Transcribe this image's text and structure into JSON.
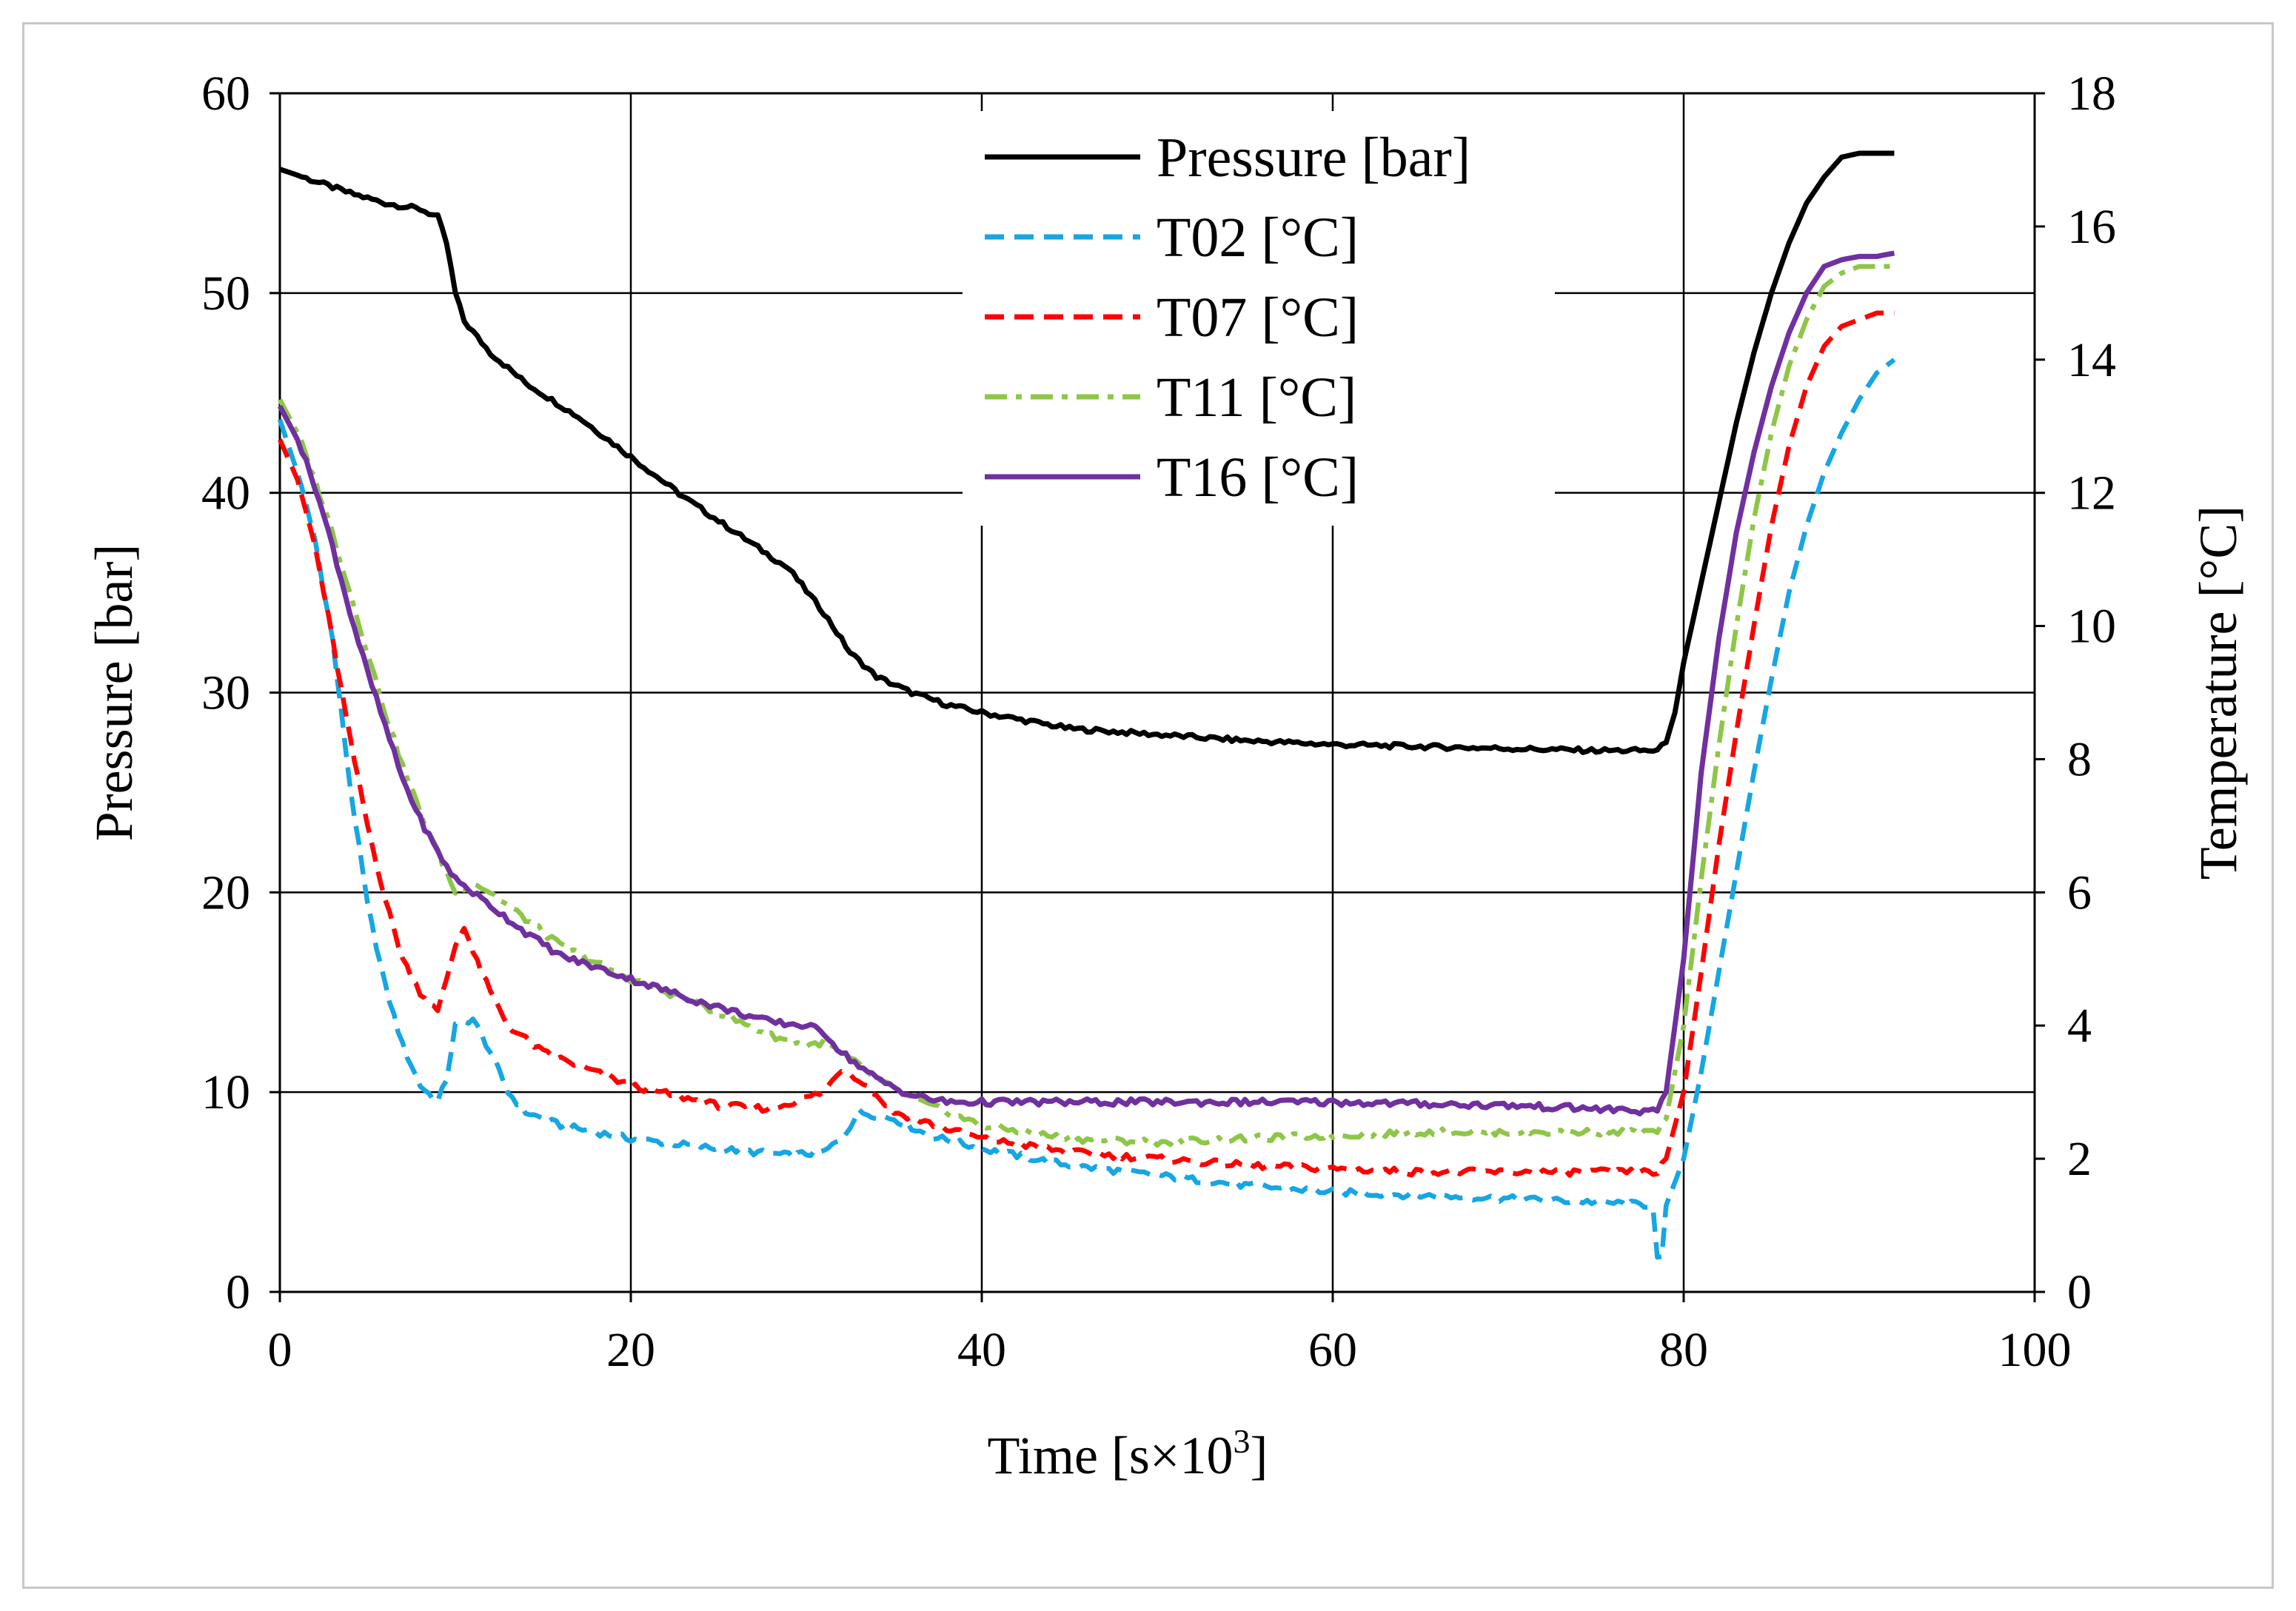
{
  "chart_data": {
    "type": "line",
    "title": "",
    "xlabel": "Time [s×10",
    "xlabel_sup": "3",
    "xlabel_end": "]",
    "ylabel": "Pressure [bar]",
    "y2label": "Temperature [°C]",
    "xlim": [
      0,
      100
    ],
    "ylim": [
      0,
      60
    ],
    "y2lim": [
      0,
      18
    ],
    "xticks": [
      "0",
      "20",
      "40",
      "60",
      "80",
      "100"
    ],
    "yticks": [
      "0",
      "10",
      "20",
      "30",
      "40",
      "50",
      "60"
    ],
    "y2ticks": [
      "0",
      "2",
      "4",
      "6",
      "8",
      "10",
      "12",
      "14",
      "16",
      "18"
    ],
    "grid": true,
    "legend_position": "top-center",
    "series": [
      {
        "name": "Pressure [bar]",
        "axis": "left",
        "color": "#000000",
        "dash": "solid",
        "points": [
          [
            0,
            56.2
          ],
          [
            2,
            55.6
          ],
          [
            4,
            55.0
          ],
          [
            6,
            54.5
          ],
          [
            8,
            54.2
          ],
          [
            9,
            53.8
          ],
          [
            9.5,
            52.5
          ],
          [
            10,
            50.0
          ],
          [
            10.5,
            48.6
          ],
          [
            12,
            47.0
          ],
          [
            14,
            45.5
          ],
          [
            17,
            43.8
          ],
          [
            20,
            41.8
          ],
          [
            23,
            39.8
          ],
          [
            26,
            38.0
          ],
          [
            29,
            36.2
          ],
          [
            31,
            34.0
          ],
          [
            32.5,
            32.0
          ],
          [
            34,
            30.8
          ],
          [
            36,
            30.0
          ],
          [
            38,
            29.4
          ],
          [
            40,
            29.0
          ],
          [
            45,
            28.2
          ],
          [
            50,
            27.9
          ],
          [
            55,
            27.6
          ],
          [
            60,
            27.4
          ],
          [
            65,
            27.3
          ],
          [
            70,
            27.2
          ],
          [
            75,
            27.1
          ],
          [
            78.5,
            27.1
          ],
          [
            79,
            27.5
          ],
          [
            79.5,
            29.0
          ],
          [
            80,
            31.5
          ],
          [
            81,
            35.5
          ],
          [
            82,
            39.5
          ],
          [
            83,
            43.5
          ],
          [
            84,
            47.0
          ],
          [
            85,
            50.0
          ],
          [
            86,
            52.5
          ],
          [
            87,
            54.5
          ],
          [
            88,
            55.8
          ],
          [
            89,
            56.8
          ],
          [
            90,
            57.0
          ],
          [
            91,
            57.0
          ],
          [
            92,
            57.0
          ]
        ]
      },
      {
        "name": "T02 [°C]",
        "axis": "right",
        "color": "#16a6e4",
        "dash": "dashed",
        "points": [
          [
            0,
            13.1
          ],
          [
            1,
            12.3
          ],
          [
            2,
            11.3
          ],
          [
            3,
            9.8
          ],
          [
            4,
            7.6
          ],
          [
            5,
            5.8
          ],
          [
            6,
            4.6
          ],
          [
            7,
            3.7
          ],
          [
            8,
            3.1
          ],
          [
            9,
            2.85
          ],
          [
            9.5,
            3.2
          ],
          [
            10,
            4.0
          ],
          [
            11,
            4.1
          ],
          [
            12,
            3.6
          ],
          [
            13,
            3.0
          ],
          [
            14,
            2.7
          ],
          [
            16,
            2.5
          ],
          [
            20,
            2.3
          ],
          [
            25,
            2.15
          ],
          [
            29,
            2.05
          ],
          [
            31,
            2.1
          ],
          [
            32,
            2.3
          ],
          [
            33,
            2.7
          ],
          [
            35,
            2.6
          ],
          [
            37,
            2.35
          ],
          [
            40,
            2.15
          ],
          [
            45,
            1.9
          ],
          [
            50,
            1.75
          ],
          [
            55,
            1.6
          ],
          [
            60,
            1.5
          ],
          [
            65,
            1.45
          ],
          [
            70,
            1.4
          ],
          [
            75,
            1.35
          ],
          [
            78.3,
            1.3
          ],
          [
            78.5,
            0.5
          ],
          [
            78.6,
            0.0
          ],
          [
            79,
            1.3
          ],
          [
            80,
            2.0
          ],
          [
            81,
            3.3
          ],
          [
            82,
            4.8
          ],
          [
            83,
            6.3
          ],
          [
            84,
            7.8
          ],
          [
            85,
            9.2
          ],
          [
            86,
            10.5
          ],
          [
            87,
            11.5
          ],
          [
            88,
            12.3
          ],
          [
            89,
            12.9
          ],
          [
            90,
            13.4
          ],
          [
            91,
            13.8
          ],
          [
            92,
            14.0
          ]
        ]
      },
      {
        "name": "T07 [°C]",
        "axis": "right",
        "color": "#ff0000",
        "dash": "dashed",
        "points": [
          [
            0,
            12.8
          ],
          [
            1,
            12.2
          ],
          [
            2,
            11.2
          ],
          [
            3,
            9.8
          ],
          [
            4,
            8.3
          ],
          [
            5,
            7.0
          ],
          [
            6,
            5.9
          ],
          [
            7,
            5.0
          ],
          [
            8,
            4.5
          ],
          [
            9,
            4.2
          ],
          [
            10,
            5.2
          ],
          [
            10.5,
            5.5
          ],
          [
            11,
            5.1
          ],
          [
            12,
            4.5
          ],
          [
            13,
            4.0
          ],
          [
            15,
            3.6
          ],
          [
            18,
            3.3
          ],
          [
            20,
            3.1
          ],
          [
            25,
            2.8
          ],
          [
            28,
            2.75
          ],
          [
            31,
            3.0
          ],
          [
            32,
            3.35
          ],
          [
            33,
            3.2
          ],
          [
            35,
            2.7
          ],
          [
            38,
            2.45
          ],
          [
            40,
            2.3
          ],
          [
            45,
            2.1
          ],
          [
            50,
            2.0
          ],
          [
            55,
            1.9
          ],
          [
            60,
            1.85
          ],
          [
            65,
            1.8
          ],
          [
            70,
            1.8
          ],
          [
            75,
            1.8
          ],
          [
            78.5,
            1.8
          ],
          [
            79,
            2.0
          ],
          [
            80,
            3.0
          ],
          [
            81,
            4.8
          ],
          [
            82,
            6.7
          ],
          [
            83,
            8.4
          ],
          [
            84,
            10.0
          ],
          [
            85,
            11.5
          ],
          [
            86,
            12.7
          ],
          [
            87,
            13.6
          ],
          [
            88,
            14.2
          ],
          [
            89,
            14.5
          ],
          [
            90,
            14.6
          ],
          [
            91,
            14.7
          ],
          [
            92,
            14.7
          ]
        ]
      },
      {
        "name": "T11 [°C]",
        "axis": "right",
        "color": "#8ec647",
        "dash": "dashdot",
        "points": [
          [
            0,
            13.4
          ],
          [
            1,
            12.9
          ],
          [
            2,
            12.2
          ],
          [
            3,
            11.4
          ],
          [
            4,
            10.5
          ],
          [
            5,
            9.6
          ],
          [
            6,
            8.7
          ],
          [
            7,
            7.9
          ],
          [
            8,
            7.2
          ],
          [
            9,
            6.6
          ],
          [
            10,
            6.0
          ],
          [
            11,
            6.15
          ],
          [
            12,
            6.0
          ],
          [
            14,
            5.6
          ],
          [
            16,
            5.2
          ],
          [
            20,
            4.7
          ],
          [
            24,
            4.3
          ],
          [
            28,
            3.85
          ],
          [
            30,
            3.7
          ],
          [
            31,
            3.75
          ],
          [
            32,
            3.6
          ],
          [
            34,
            3.2
          ],
          [
            36,
            2.9
          ],
          [
            40,
            2.5
          ],
          [
            45,
            2.3
          ],
          [
            50,
            2.25
          ],
          [
            55,
            2.3
          ],
          [
            60,
            2.35
          ],
          [
            65,
            2.4
          ],
          [
            70,
            2.4
          ],
          [
            75,
            2.4
          ],
          [
            78.5,
            2.4
          ],
          [
            79,
            2.6
          ],
          [
            80,
            4.0
          ],
          [
            81,
            6.2
          ],
          [
            82,
            8.2
          ],
          [
            83,
            10.0
          ],
          [
            84,
            11.6
          ],
          [
            85,
            12.9
          ],
          [
            86,
            13.9
          ],
          [
            87,
            14.6
          ],
          [
            88,
            15.1
          ],
          [
            89,
            15.3
          ],
          [
            90,
            15.4
          ],
          [
            91,
            15.4
          ],
          [
            92,
            15.4
          ]
        ]
      },
      {
        "name": "T16 [°C]",
        "axis": "right",
        "color": "#7030a0",
        "dash": "solid",
        "points": [
          [
            0,
            13.3
          ],
          [
            1,
            12.8
          ],
          [
            2,
            12.1
          ],
          [
            3,
            11.2
          ],
          [
            4,
            10.2
          ],
          [
            5,
            9.3
          ],
          [
            6,
            8.5
          ],
          [
            7,
            7.7
          ],
          [
            8,
            7.1
          ],
          [
            9,
            6.6
          ],
          [
            10,
            6.2
          ],
          [
            12,
            5.8
          ],
          [
            14,
            5.4
          ],
          [
            16,
            5.05
          ],
          [
            20,
            4.7
          ],
          [
            24,
            4.35
          ],
          [
            28,
            4.05
          ],
          [
            30,
            4.0
          ],
          [
            31,
            3.9
          ],
          [
            32,
            3.6
          ],
          [
            34,
            3.2
          ],
          [
            36,
            2.95
          ],
          [
            38,
            2.85
          ],
          [
            40,
            2.85
          ],
          [
            50,
            2.85
          ],
          [
            60,
            2.85
          ],
          [
            70,
            2.8
          ],
          [
            75,
            2.75
          ],
          [
            78.5,
            2.7
          ],
          [
            79,
            3.0
          ],
          [
            80,
            5.0
          ],
          [
            81,
            7.8
          ],
          [
            82,
            9.8
          ],
          [
            83,
            11.4
          ],
          [
            84,
            12.6
          ],
          [
            85,
            13.6
          ],
          [
            86,
            14.4
          ],
          [
            87,
            15.0
          ],
          [
            88,
            15.4
          ],
          [
            89,
            15.5
          ],
          [
            90,
            15.55
          ],
          [
            91,
            15.55
          ],
          [
            92,
            15.6
          ]
        ]
      }
    ]
  }
}
